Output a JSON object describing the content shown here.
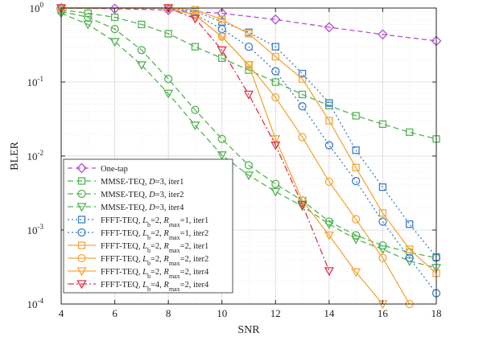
{
  "chart_data": {
    "type": "line",
    "xlabel": "SNR",
    "ylabel": "BLER",
    "xlim": [
      4,
      18
    ],
    "ylim": [
      0.0001,
      1
    ],
    "yscale": "log",
    "grid": true,
    "legend_position": "bottom-left",
    "x_ticks": [
      "4",
      "6",
      "8",
      "10",
      "12",
      "14",
      "16",
      "18"
    ],
    "y_ticks": [
      {
        "base": "10",
        "exp": "-4",
        "value": 0.0001
      },
      {
        "base": "10",
        "exp": "-3",
        "value": 0.001
      },
      {
        "base": "10",
        "exp": "-2",
        "value": 0.01
      },
      {
        "base": "10",
        "exp": "-1",
        "value": 0.1
      },
      {
        "base": "10",
        "exp": "0",
        "value": 1
      }
    ],
    "series": [
      {
        "legend": [
          {
            "t": "One-tap",
            "s": ""
          }
        ],
        "color": "#b44fd6",
        "dash": "6,4",
        "marker": "diamond",
        "x": [
          4,
          6,
          8,
          10,
          12,
          14,
          16,
          18
        ],
        "y": [
          1.0,
          0.98,
          0.94,
          0.85,
          0.7,
          0.55,
          0.44,
          0.36
        ]
      },
      {
        "legend": [
          {
            "t": "MMSE-TEQ, ",
            "s": ""
          },
          {
            "t": "D",
            "s": "i"
          },
          {
            "t": "=3, iter1",
            "s": ""
          }
        ],
        "color": "#55b355",
        "dash": "7,4",
        "marker": "square",
        "x": [
          4,
          5,
          6,
          7,
          8,
          9,
          10,
          11,
          12,
          13,
          14,
          15,
          16,
          17,
          18
        ],
        "y": [
          0.95,
          0.85,
          0.75,
          0.6,
          0.45,
          0.3,
          0.21,
          0.145,
          0.1,
          0.068,
          0.048,
          0.035,
          0.027,
          0.021,
          0.017
        ]
      },
      {
        "legend": [
          {
            "t": "MMSE-TEQ, ",
            "s": ""
          },
          {
            "t": "D",
            "s": "i"
          },
          {
            "t": "=3, iter2",
            "s": ""
          }
        ],
        "color": "#55b355",
        "dash": "7,4",
        "marker": "circle",
        "x": [
          4,
          5,
          6,
          7,
          8,
          9,
          10,
          11,
          12,
          13,
          14,
          15,
          16,
          17,
          18
        ],
        "y": [
          0.9,
          0.75,
          0.52,
          0.27,
          0.11,
          0.042,
          0.017,
          0.0075,
          0.0042,
          0.0025,
          0.0013,
          0.00085,
          0.00062,
          0.0005,
          0.00042
        ]
      },
      {
        "legend": [
          {
            "t": "MMSE-TEQ, ",
            "s": ""
          },
          {
            "t": "D",
            "s": "i"
          },
          {
            "t": "=3, iter4",
            "s": ""
          }
        ],
        "color": "#55b355",
        "dash": "7,4",
        "marker": "triangle",
        "x": [
          4,
          5,
          6,
          7,
          8,
          9,
          10,
          11,
          12,
          13,
          14,
          15,
          16,
          17,
          18
        ],
        "y": [
          0.85,
          0.6,
          0.35,
          0.17,
          0.07,
          0.026,
          0.0103,
          0.0055,
          0.0033,
          0.0021,
          0.0012,
          0.00075,
          0.00055,
          0.00038,
          0.00031
        ]
      },
      {
        "legend": [
          {
            "t": "FFFT-TEQ, ",
            "s": ""
          },
          {
            "t": "L",
            "s": "i"
          },
          {
            "t": "b",
            "s": "sub"
          },
          {
            "t": "=2, ",
            "s": ""
          },
          {
            "t": "R",
            "s": "i"
          },
          {
            "t": "max",
            "s": "sub"
          },
          {
            "t": "=1, iter1",
            "s": ""
          }
        ],
        "color": "#3a7ccf",
        "dash": "2,3",
        "marker": "square",
        "x": [
          4,
          8,
          9,
          10,
          11,
          12,
          13,
          14,
          15,
          16,
          17,
          18
        ],
        "y": [
          1.0,
          1.0,
          0.9,
          0.65,
          0.47,
          0.3,
          0.13,
          0.052,
          0.012,
          0.0038,
          0.0012,
          0.00043
        ]
      },
      {
        "legend": [
          {
            "t": "FFFT-TEQ, ",
            "s": ""
          },
          {
            "t": "L",
            "s": "i"
          },
          {
            "t": "b",
            "s": "sub"
          },
          {
            "t": "=2, ",
            "s": ""
          },
          {
            "t": "R",
            "s": "i"
          },
          {
            "t": "max",
            "s": "sub"
          },
          {
            "t": "=1, iter2",
            "s": ""
          }
        ],
        "color": "#3a7ccf",
        "dash": "2,3",
        "marker": "circle",
        "x": [
          4,
          8,
          9,
          10,
          11,
          12,
          13,
          14,
          15,
          16,
          17,
          18
        ],
        "y": [
          1.0,
          1.0,
          0.82,
          0.52,
          0.3,
          0.14,
          0.047,
          0.014,
          0.0046,
          0.0013,
          0.00042,
          0.00014
        ]
      },
      {
        "legend": [
          {
            "t": "FFFT-TEQ, ",
            "s": ""
          },
          {
            "t": "L",
            "s": "i"
          },
          {
            "t": "b",
            "s": "sub"
          },
          {
            "t": "=2, ",
            "s": ""
          },
          {
            "t": "R",
            "s": "i"
          },
          {
            "t": "max",
            "s": "sub"
          },
          {
            "t": "=2, iter1",
            "s": ""
          }
        ],
        "color": "#f4a73a",
        "dash": "",
        "marker": "square",
        "x": [
          4,
          8,
          9,
          10,
          11,
          12,
          13,
          14,
          15,
          16,
          17,
          18
        ],
        "y": [
          1.0,
          1.0,
          0.95,
          0.7,
          0.45,
          0.22,
          0.11,
          0.03,
          0.007,
          0.0017,
          0.00055,
          0.00026
        ]
      },
      {
        "legend": [
          {
            "t": "FFFT-TEQ, ",
            "s": ""
          },
          {
            "t": "L",
            "s": "i"
          },
          {
            "t": "b",
            "s": "sub"
          },
          {
            "t": "=2, ",
            "s": ""
          },
          {
            "t": "R",
            "s": "i"
          },
          {
            "t": "max",
            "s": "sub"
          },
          {
            "t": "=2, iter2",
            "s": ""
          }
        ],
        "color": "#f4a73a",
        "dash": "",
        "marker": "circle",
        "x": [
          4,
          8,
          9,
          10,
          11,
          12,
          13,
          14,
          15,
          16,
          17
        ],
        "y": [
          1.0,
          1.0,
          0.8,
          0.41,
          0.17,
          0.062,
          0.018,
          0.0045,
          0.0014,
          0.00042,
          0.0001
        ]
      },
      {
        "legend": [
          {
            "t": "FFFT-TEQ, ",
            "s": ""
          },
          {
            "t": "L",
            "s": "i"
          },
          {
            "t": "b",
            "s": "sub"
          },
          {
            "t": "=2, ",
            "s": ""
          },
          {
            "t": "R",
            "s": "i"
          },
          {
            "t": "max",
            "s": "sub"
          },
          {
            "t": "=2, iter4",
            "s": ""
          }
        ],
        "color": "#f4a73a",
        "dash": "",
        "marker": "triangle",
        "x": [
          4,
          8,
          9,
          10,
          11,
          12,
          13,
          14,
          15,
          16
        ],
        "y": [
          1.0,
          1.0,
          0.8,
          0.41,
          0.17,
          0.017,
          0.0025,
          0.00085,
          0.00027,
          0.0001
        ]
      },
      {
        "legend": [
          {
            "t": "FFFT-TEQ, ",
            "s": ""
          },
          {
            "t": "L",
            "s": "i"
          },
          {
            "t": "b",
            "s": "sub"
          },
          {
            "t": "=4, ",
            "s": ""
          },
          {
            "t": "R",
            "s": "i"
          },
          {
            "t": "max",
            "s": "sub"
          },
          {
            "t": "=2, iter4",
            "s": ""
          }
        ],
        "color": "#e0334c",
        "dash": "8,3,2,3",
        "marker": "triangle",
        "x": [
          4,
          8,
          9,
          10,
          11,
          12,
          13,
          14
        ],
        "y": [
          1.0,
          1.0,
          0.72,
          0.27,
          0.068,
          0.014,
          0.0022,
          0.00028
        ]
      }
    ]
  }
}
